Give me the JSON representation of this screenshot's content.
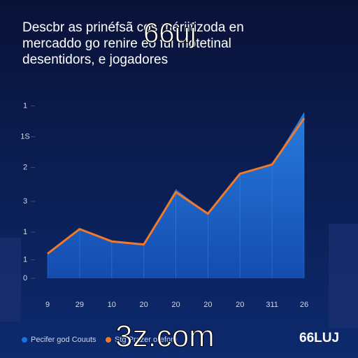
{
  "chart_data": {
    "type": "area",
    "title_lines": [
      "Descbr as prinéfsã cos mériitizoda en",
      "mercaddo go renire eo fui motetinal",
      "desentidors, e jogadores"
    ],
    "overlay_text": "66uj",
    "watermark": "3z.com",
    "logo": "66LUJ",
    "categories": [
      "9",
      "29",
      "10",
      "20",
      "20",
      "20",
      "20",
      "311",
      "26"
    ],
    "series": [
      {
        "name": "Pecifer god Couuts",
        "color": "#1e6fd9",
        "values": [
          0.8,
          1.6,
          1.2,
          1.1,
          2.9,
          2.1,
          3.4,
          3.7,
          5.4
        ]
      },
      {
        "name": "Stg Prazer orefom",
        "color": "#f07a2a",
        "values": [
          0.8,
          1.6,
          1.2,
          1.1,
          2.8,
          2.1,
          3.4,
          3.7,
          5.2
        ]
      }
    ],
    "ylim": [
      0,
      6
    ],
    "yticks": [
      0,
      {
        "value": 0.6,
        "label": "1"
      },
      {
        "value": 1.5,
        "label": "1"
      },
      {
        "value": 2.5,
        "label": "3"
      },
      {
        "value": 3.6,
        "label": "2"
      },
      {
        "value": 4.6,
        "label": "1S"
      },
      {
        "value": 5.6,
        "label": "1"
      }
    ]
  }
}
